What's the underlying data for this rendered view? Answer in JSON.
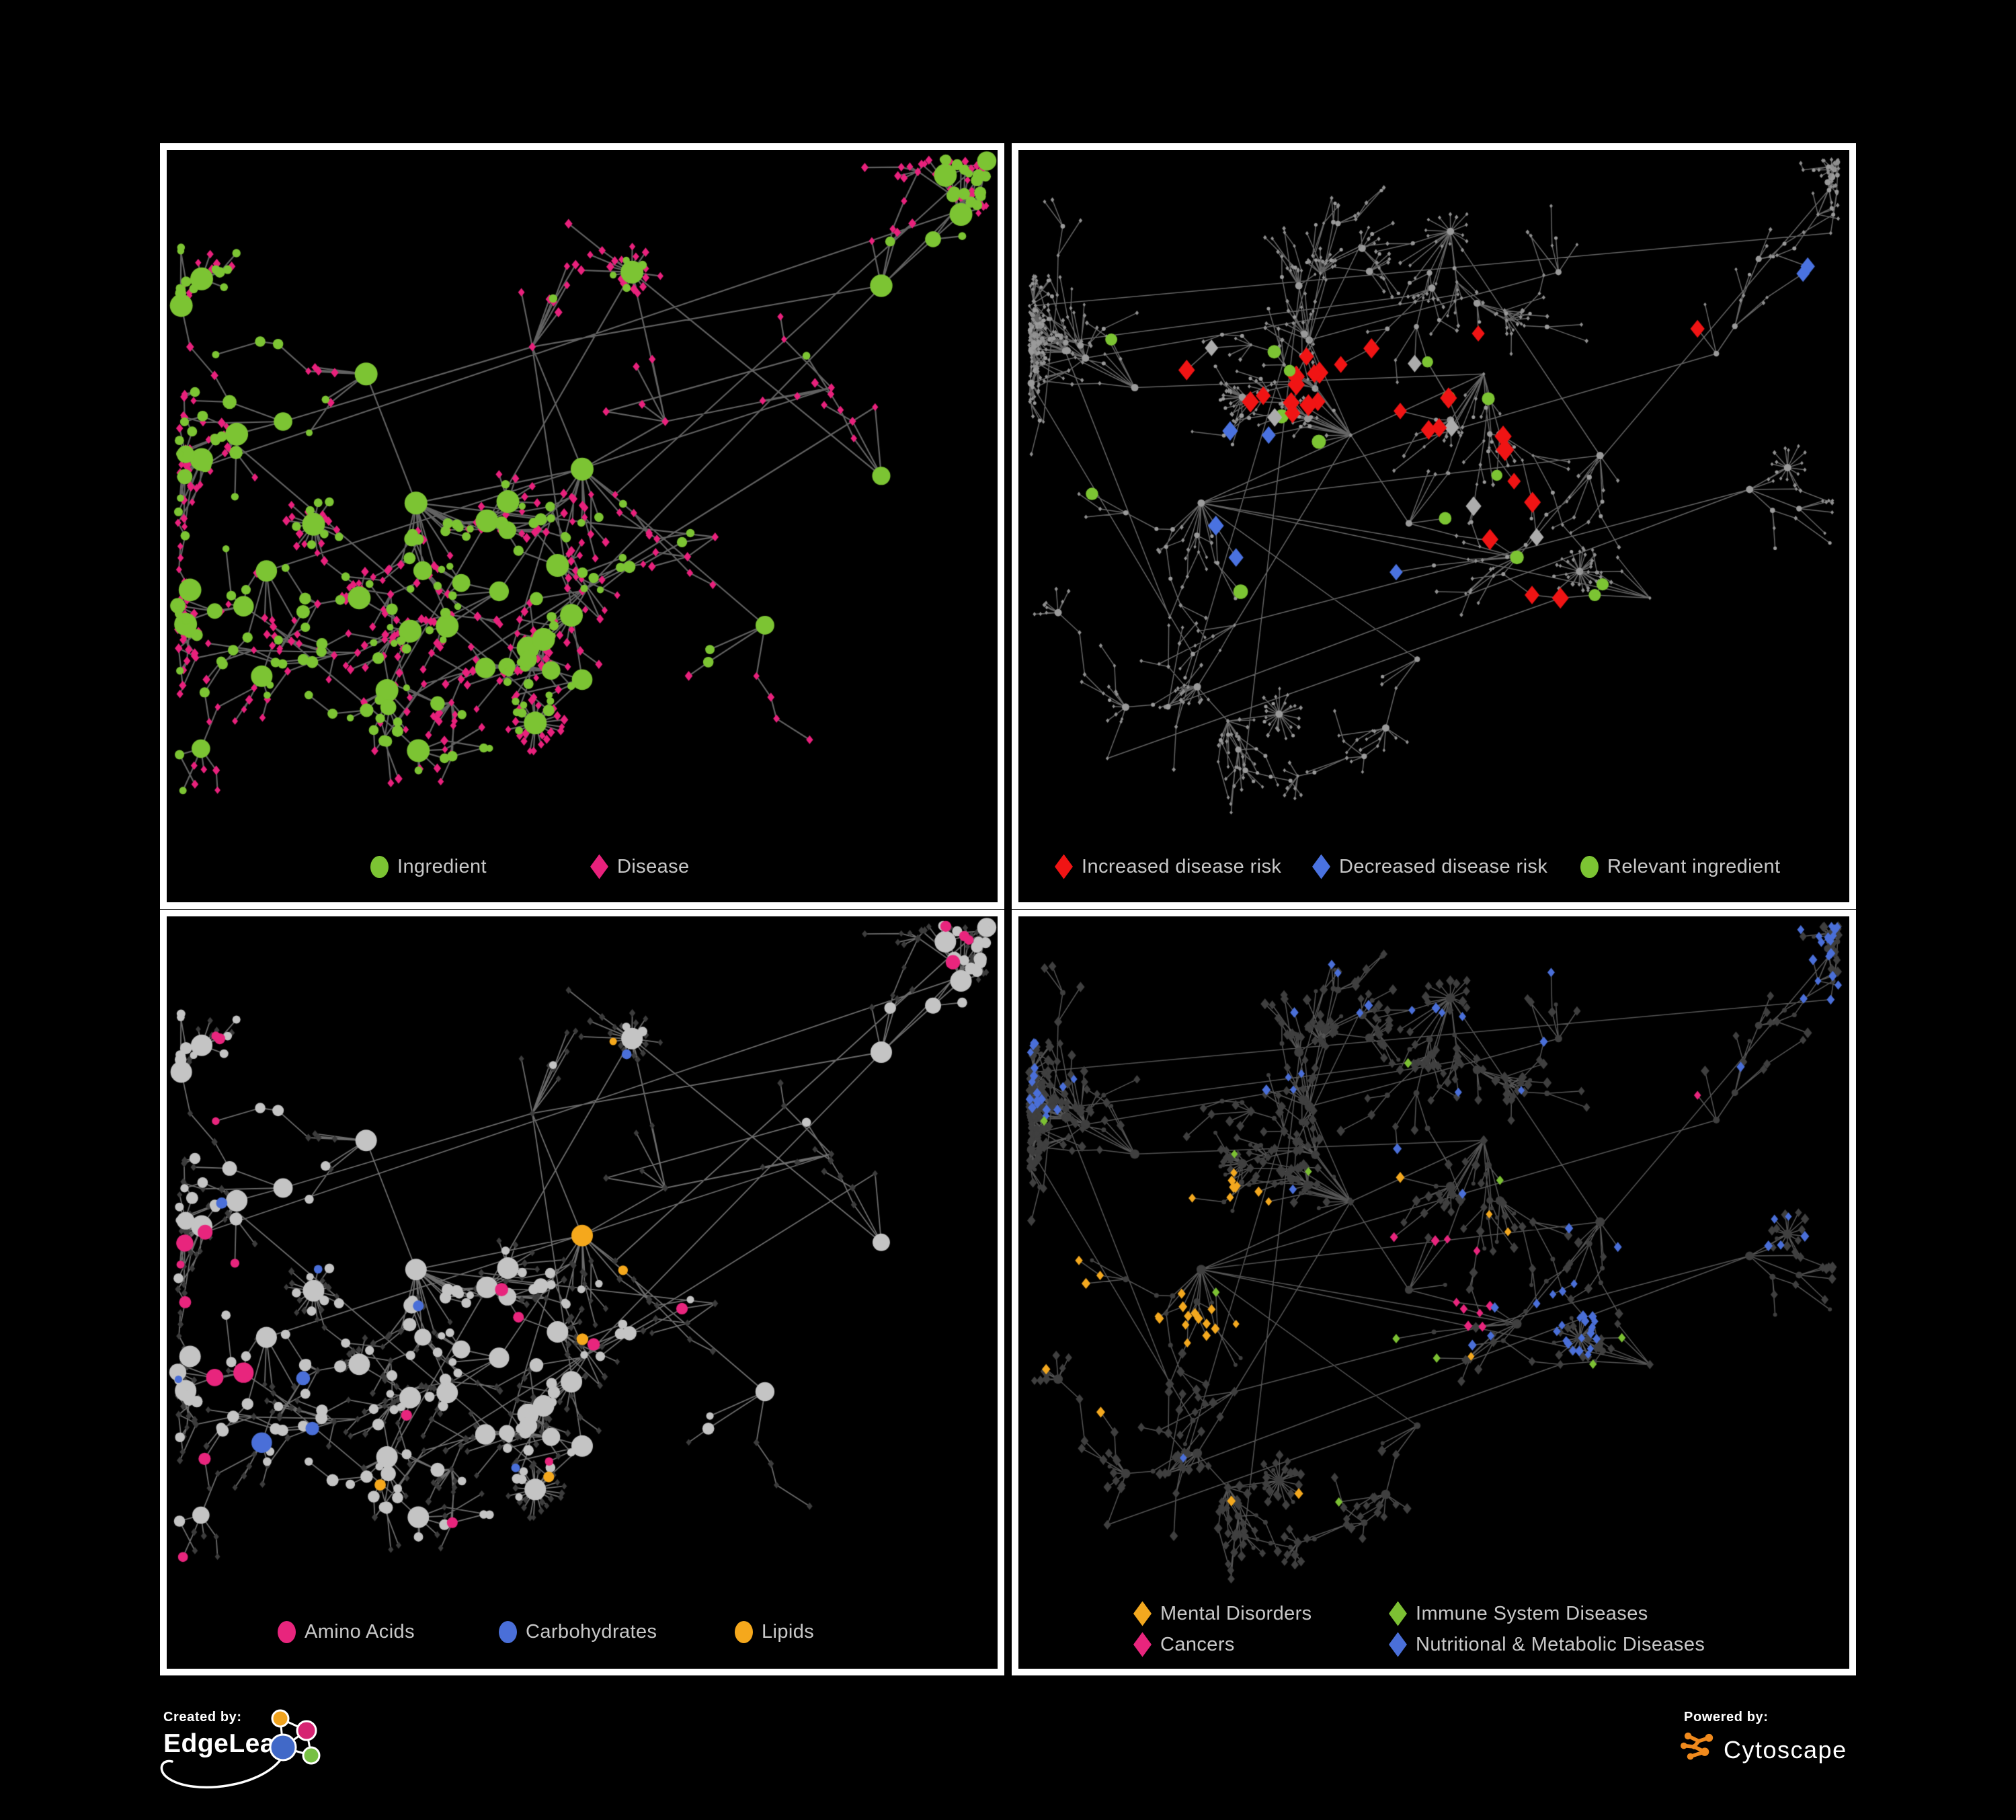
{
  "branding": {
    "created_by_label": "Created by:",
    "created_by_name": "EdgeLeap",
    "powered_by_label": "Powered by:",
    "powered_by_name": "Cytoscape"
  },
  "colors": {
    "background": "#000000",
    "panel_border": "#FFFFFF",
    "legend_text": "#C8C8C8",
    "ingredient_green": "#7CC433",
    "disease_pink": "#E8217C",
    "increased_risk_red": "#F01414",
    "decreased_risk_blue": "#4A72E0",
    "neutral_silver": "#ACACAC",
    "amino_acid_pink": "#E8257D",
    "carbohydrate_blue": "#4A6FD8",
    "lipid_orange": "#F5A81C",
    "mental_orange": "#F3A81F",
    "immune_green": "#7CC033",
    "cancer_pink": "#E8257D",
    "nutritional_blue": "#4A6FD8",
    "edgeleap_orange": "#F0A31F",
    "edgeleap_pink": "#D62472",
    "edgeleap_blue": "#4169C8",
    "edgeleap_green": "#77C043",
    "cytoscape_orange": "#F08A1D"
  },
  "panels": [
    {
      "id": "ingredient-disease-network",
      "legend": [
        {
          "shape": "circle",
          "color": "#7CC433",
          "label": "Ingredient"
        },
        {
          "shape": "diamond",
          "color": "#E8217C",
          "label": "Disease"
        }
      ],
      "network": {
        "layout": "A",
        "scheme": "p1"
      }
    },
    {
      "id": "disease-risk-network",
      "legend": [
        {
          "shape": "diamond",
          "color": "#F01414",
          "label": "Increased disease risk"
        },
        {
          "shape": "diamond",
          "color": "#4A72E0",
          "label": "Decreased disease risk"
        },
        {
          "shape": "circle",
          "color": "#7CC433",
          "label": "Relevant ingredient"
        }
      ],
      "network": {
        "layout": "B",
        "scheme": "p2"
      }
    },
    {
      "id": "nutrient-class-network",
      "legend": [
        {
          "shape": "circle",
          "color": "#E8257D",
          "label": "Amino Acids"
        },
        {
          "shape": "circle",
          "color": "#4A6FD8",
          "label": "Carbohydrates"
        },
        {
          "shape": "circle",
          "color": "#F5A81C",
          "label": "Lipids"
        }
      ],
      "network": {
        "layout": "A",
        "scheme": "p3"
      }
    },
    {
      "id": "disease-class-network",
      "legend": [
        {
          "shape": "diamond",
          "color": "#F3A81F",
          "label": "Mental Disorders"
        },
        {
          "shape": "diamond",
          "color": "#7CC033",
          "label": "Immune System Diseases"
        },
        {
          "shape": "diamond",
          "color": "#E8257D",
          "label": "Cancers"
        },
        {
          "shape": "diamond",
          "color": "#4A6FD8",
          "label": "Nutritional & Metabolic Diseases"
        }
      ],
      "network": {
        "layout": "B",
        "scheme": "p4"
      }
    }
  ],
  "network_layouts": {
    "A": {
      "seed": 1337,
      "nodes": 640,
      "step": 47,
      "fan_prob": 0.085,
      "fan_max": 13,
      "leaf_circle": 0.2,
      "mid_circle": 0.42,
      "hubs": [
        [
          0.3,
          0.52
        ],
        [
          0.5,
          0.47
        ],
        [
          0.44,
          0.29
        ],
        [
          0.6,
          0.4
        ],
        [
          0.24,
          0.33
        ],
        [
          0.66,
          0.57
        ],
        [
          0.4,
          0.65
        ],
        [
          0.56,
          0.18
        ],
        [
          0.14,
          0.4
        ],
        [
          0.8,
          0.35
        ],
        [
          0.86,
          0.48
        ],
        [
          0.28,
          0.77
        ],
        [
          0.5,
          0.78
        ],
        [
          0.72,
          0.7
        ],
        [
          0.12,
          0.62
        ],
        [
          0.86,
          0.2
        ]
      ],
      "bursts": [
        [
          0.47,
          0.87,
          26
        ],
        [
          0.63,
          0.185,
          18
        ],
        [
          0.175,
          0.52,
          20
        ]
      ]
    },
    "B": {
      "seed": 4242,
      "nodes": 860,
      "step": 43,
      "fan_prob": 0.1,
      "fan_max": 15,
      "leaf_circle": 0.12,
      "mid_circle": 0.3,
      "hubs": [
        [
          0.4,
          0.42
        ],
        [
          0.22,
          0.52
        ],
        [
          0.47,
          0.55
        ],
        [
          0.6,
          0.6
        ],
        [
          0.35,
          0.28
        ],
        [
          0.56,
          0.33
        ],
        [
          0.7,
          0.45
        ],
        [
          0.26,
          0.7
        ],
        [
          0.48,
          0.75
        ],
        [
          0.76,
          0.66
        ],
        [
          0.84,
          0.3
        ],
        [
          0.65,
          0.18
        ],
        [
          0.14,
          0.35
        ],
        [
          0.88,
          0.5
        ],
        [
          0.52,
          0.12
        ],
        [
          0.18,
          0.82
        ]
      ],
      "bursts": [
        [
          0.645,
          0.605,
          28
        ],
        [
          0.335,
          0.76,
          22
        ],
        [
          0.875,
          0.42,
          16
        ],
        [
          0.54,
          0.135,
          14
        ]
      ]
    }
  }
}
